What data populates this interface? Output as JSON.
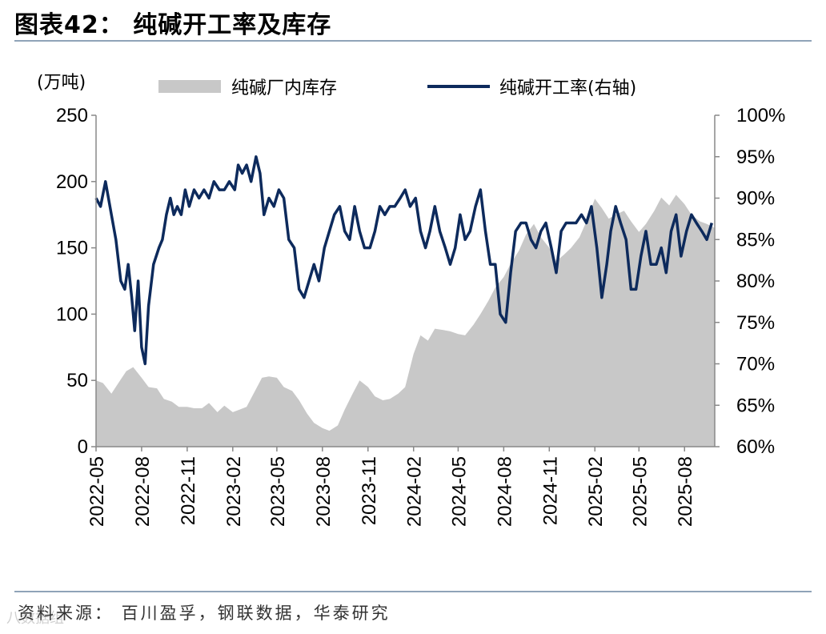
{
  "header": {
    "title": "图表42：  纯碱开工率及库存"
  },
  "footer": {
    "source": "资料来源： 百川盈孚，钢联数据，华泰研究",
    "watermark": "八数据组"
  },
  "chart_data": {
    "type": "area+line",
    "title": "图表42：  纯碱开工率及库存",
    "left_axis_unit": "(万吨)",
    "ylim_left": [
      0,
      250
    ],
    "ylim_right": [
      60,
      100
    ],
    "left_ticks": [
      "250",
      "200",
      "150",
      "100",
      "50",
      "0"
    ],
    "right_ticks": [
      "100%",
      "95%",
      "90%",
      "85%",
      "80%",
      "75%",
      "70%",
      "65%",
      "60%"
    ],
    "x_range": [
      "2022-05",
      "2025-10"
    ],
    "x_tick_labels": [
      "2022-05",
      "2022-08",
      "2022-11",
      "2023-02",
      "2023-05",
      "2023-08",
      "2023-11",
      "2024-02",
      "2024-05",
      "2024-08",
      "2024-11",
      "2025-02",
      "2025-05",
      "2025-08"
    ],
    "legend_position": "top",
    "series": [
      {
        "name": "纯碱厂内库存",
        "type": "area",
        "axis": "left",
        "color": "#c8c8c8",
        "points": [
          [
            "2022-05-01",
            50
          ],
          [
            "2022-05-15",
            48
          ],
          [
            "2022-06-01",
            40
          ],
          [
            "2022-06-15",
            48
          ],
          [
            "2022-07-01",
            57
          ],
          [
            "2022-07-15",
            60
          ],
          [
            "2022-08-01",
            52
          ],
          [
            "2022-08-15",
            45
          ],
          [
            "2022-09-01",
            44
          ],
          [
            "2022-09-15",
            36
          ],
          [
            "2022-10-01",
            34
          ],
          [
            "2022-10-15",
            30
          ],
          [
            "2022-11-01",
            30
          ],
          [
            "2022-11-15",
            29
          ],
          [
            "2022-12-01",
            29
          ],
          [
            "2022-12-15",
            33
          ],
          [
            "2023-01-01",
            26
          ],
          [
            "2023-01-15",
            31
          ],
          [
            "2023-02-01",
            26
          ],
          [
            "2023-02-15",
            28
          ],
          [
            "2023-03-01",
            30
          ],
          [
            "2023-03-15",
            40
          ],
          [
            "2023-04-01",
            52
          ],
          [
            "2023-04-15",
            53
          ],
          [
            "2023-05-01",
            52
          ],
          [
            "2023-05-15",
            45
          ],
          [
            "2023-06-01",
            42
          ],
          [
            "2023-06-15",
            35
          ],
          [
            "2023-07-01",
            25
          ],
          [
            "2023-07-15",
            18
          ],
          [
            "2023-08-01",
            14
          ],
          [
            "2023-08-15",
            12
          ],
          [
            "2023-09-01",
            16
          ],
          [
            "2023-09-15",
            28
          ],
          [
            "2023-10-01",
            40
          ],
          [
            "2023-10-15",
            50
          ],
          [
            "2023-11-01",
            45
          ],
          [
            "2023-11-15",
            38
          ],
          [
            "2023-12-01",
            35
          ],
          [
            "2023-12-15",
            36
          ],
          [
            "2024-01-01",
            40
          ],
          [
            "2024-01-15",
            45
          ],
          [
            "2024-02-01",
            70
          ],
          [
            "2024-02-15",
            84
          ],
          [
            "2024-03-01",
            80
          ],
          [
            "2024-03-15",
            89
          ],
          [
            "2024-04-01",
            88
          ],
          [
            "2024-04-15",
            87
          ],
          [
            "2024-05-01",
            85
          ],
          [
            "2024-05-15",
            84
          ],
          [
            "2024-06-01",
            92
          ],
          [
            "2024-06-15",
            100
          ],
          [
            "2024-07-01",
            110
          ],
          [
            "2024-07-15",
            120
          ],
          [
            "2024-08-01",
            128
          ],
          [
            "2024-08-15",
            138
          ],
          [
            "2024-09-01",
            148
          ],
          [
            "2024-09-15",
            160
          ],
          [
            "2024-10-01",
            168
          ],
          [
            "2024-10-15",
            158
          ],
          [
            "2024-11-01",
            150
          ],
          [
            "2024-11-15",
            140
          ],
          [
            "2024-12-01",
            145
          ],
          [
            "2024-12-15",
            150
          ],
          [
            "2025-01-01",
            158
          ],
          [
            "2025-01-15",
            170
          ],
          [
            "2025-02-01",
            187
          ],
          [
            "2025-02-15",
            180
          ],
          [
            "2025-03-01",
            172
          ],
          [
            "2025-03-15",
            175
          ],
          [
            "2025-04-01",
            178
          ],
          [
            "2025-04-15",
            170
          ],
          [
            "2025-05-01",
            162
          ],
          [
            "2025-05-15",
            168
          ],
          [
            "2025-06-01",
            178
          ],
          [
            "2025-06-15",
            188
          ],
          [
            "2025-07-01",
            182
          ],
          [
            "2025-07-15",
            190
          ],
          [
            "2025-08-01",
            183
          ],
          [
            "2025-08-15",
            175
          ],
          [
            "2025-09-01",
            170
          ],
          [
            "2025-09-15",
            168
          ],
          [
            "2025-10-01",
            165
          ]
        ]
      },
      {
        "name": "纯碱开工率(右轴)",
        "type": "line",
        "axis": "right",
        "color": "#0d2a5c",
        "points": [
          [
            "2022-05-01",
            90
          ],
          [
            "2022-05-10",
            89
          ],
          [
            "2022-05-20",
            92
          ],
          [
            "2022-06-01",
            88
          ],
          [
            "2022-06-10",
            85
          ],
          [
            "2022-06-20",
            80
          ],
          [
            "2022-06-28",
            79
          ],
          [
            "2022-07-05",
            82
          ],
          [
            "2022-07-12",
            78
          ],
          [
            "2022-07-18",
            74
          ],
          [
            "2022-07-25",
            80
          ],
          [
            "2022-08-01",
            72
          ],
          [
            "2022-08-08",
            70
          ],
          [
            "2022-08-15",
            77
          ],
          [
            "2022-08-25",
            82
          ],
          [
            "2022-09-05",
            84
          ],
          [
            "2022-09-12",
            85
          ],
          [
            "2022-09-20",
            88
          ],
          [
            "2022-09-28",
            90
          ],
          [
            "2022-10-05",
            88
          ],
          [
            "2022-10-12",
            89
          ],
          [
            "2022-10-20",
            88
          ],
          [
            "2022-10-28",
            91
          ],
          [
            "2022-11-05",
            89
          ],
          [
            "2022-11-15",
            91
          ],
          [
            "2022-11-25",
            90
          ],
          [
            "2022-12-05",
            91
          ],
          [
            "2022-12-15",
            90
          ],
          [
            "2022-12-25",
            92
          ],
          [
            "2023-01-05",
            91
          ],
          [
            "2023-01-15",
            91
          ],
          [
            "2023-01-25",
            92
          ],
          [
            "2023-02-05",
            91
          ],
          [
            "2023-02-12",
            94
          ],
          [
            "2023-02-20",
            93
          ],
          [
            "2023-03-01",
            94
          ],
          [
            "2023-03-10",
            92
          ],
          [
            "2023-03-20",
            95
          ],
          [
            "2023-03-28",
            93
          ],
          [
            "2023-04-05",
            88
          ],
          [
            "2023-04-15",
            90
          ],
          [
            "2023-04-25",
            89
          ],
          [
            "2023-05-05",
            91
          ],
          [
            "2023-05-15",
            90
          ],
          [
            "2023-05-25",
            85
          ],
          [
            "2023-06-05",
            84
          ],
          [
            "2023-06-15",
            79
          ],
          [
            "2023-06-25",
            78
          ],
          [
            "2023-07-05",
            80
          ],
          [
            "2023-07-15",
            82
          ],
          [
            "2023-07-25",
            80
          ],
          [
            "2023-08-05",
            84
          ],
          [
            "2023-08-15",
            86
          ],
          [
            "2023-08-25",
            88
          ],
          [
            "2023-09-05",
            89
          ],
          [
            "2023-09-15",
            86
          ],
          [
            "2023-09-25",
            85
          ],
          [
            "2023-10-05",
            89
          ],
          [
            "2023-10-15",
            86
          ],
          [
            "2023-10-25",
            84
          ],
          [
            "2023-11-05",
            84
          ],
          [
            "2023-11-15",
            86
          ],
          [
            "2023-11-25",
            89
          ],
          [
            "2023-12-05",
            88
          ],
          [
            "2023-12-15",
            89
          ],
          [
            "2023-12-25",
            89
          ],
          [
            "2024-01-05",
            90
          ],
          [
            "2024-01-15",
            91
          ],
          [
            "2024-01-25",
            89
          ],
          [
            "2024-02-05",
            90
          ],
          [
            "2024-02-15",
            86
          ],
          [
            "2024-02-25",
            84
          ],
          [
            "2024-03-05",
            86
          ],
          [
            "2024-03-15",
            89
          ],
          [
            "2024-03-25",
            86
          ],
          [
            "2024-04-05",
            84
          ],
          [
            "2024-04-15",
            82
          ],
          [
            "2024-04-25",
            84
          ],
          [
            "2024-05-05",
            88
          ],
          [
            "2024-05-15",
            85
          ],
          [
            "2024-05-25",
            86
          ],
          [
            "2024-06-05",
            89
          ],
          [
            "2024-06-15",
            91
          ],
          [
            "2024-06-25",
            86
          ],
          [
            "2024-07-05",
            82
          ],
          [
            "2024-07-15",
            82
          ],
          [
            "2024-07-25",
            76
          ],
          [
            "2024-08-05",
            75
          ],
          [
            "2024-08-15",
            81
          ],
          [
            "2024-08-25",
            86
          ],
          [
            "2024-09-05",
            87
          ],
          [
            "2024-09-15",
            87
          ],
          [
            "2024-09-25",
            85
          ],
          [
            "2024-10-05",
            84
          ],
          [
            "2024-10-15",
            86
          ],
          [
            "2024-10-25",
            87
          ],
          [
            "2024-11-05",
            84
          ],
          [
            "2024-11-15",
            81
          ],
          [
            "2024-11-25",
            86
          ],
          [
            "2024-12-05",
            87
          ],
          [
            "2024-12-15",
            87
          ],
          [
            "2024-12-25",
            87
          ],
          [
            "2025-01-05",
            88
          ],
          [
            "2025-01-15",
            87
          ],
          [
            "2025-01-25",
            89
          ],
          [
            "2025-02-05",
            84
          ],
          [
            "2025-02-15",
            78
          ],
          [
            "2025-02-25",
            82
          ],
          [
            "2025-03-05",
            86
          ],
          [
            "2025-03-15",
            89
          ],
          [
            "2025-03-25",
            87
          ],
          [
            "2025-04-05",
            85
          ],
          [
            "2025-04-15",
            79
          ],
          [
            "2025-04-25",
            79
          ],
          [
            "2025-05-05",
            83
          ],
          [
            "2025-05-15",
            86
          ],
          [
            "2025-05-25",
            82
          ],
          [
            "2025-06-05",
            82
          ],
          [
            "2025-06-15",
            84
          ],
          [
            "2025-06-25",
            81
          ],
          [
            "2025-07-05",
            86
          ],
          [
            "2025-07-15",
            88
          ],
          [
            "2025-07-25",
            83
          ],
          [
            "2025-08-05",
            86
          ],
          [
            "2025-08-15",
            88
          ],
          [
            "2025-08-25",
            87
          ],
          [
            "2025-09-05",
            86
          ],
          [
            "2025-09-15",
            85
          ],
          [
            "2025-09-25",
            87
          ]
        ]
      }
    ]
  }
}
